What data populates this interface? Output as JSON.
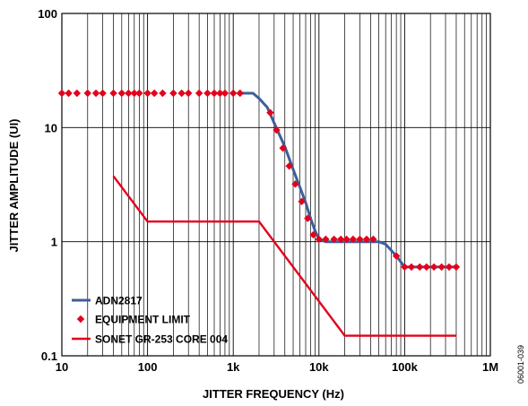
{
  "chart_data": {
    "type": "line",
    "xlabel": "JITTER FREQUENCY (Hz)",
    "ylabel": "JITTER AMPLITUDE (UI)",
    "xscale": "log",
    "yscale": "log",
    "xlim": [
      10,
      1000000
    ],
    "ylim": [
      0.1,
      100
    ],
    "grid": true,
    "legend_position": "bottom-left",
    "x_ticks": [
      {
        "value": 10,
        "label": "10"
      },
      {
        "value": 100,
        "label": "100"
      },
      {
        "value": 1000,
        "label": "1k"
      },
      {
        "value": 10000,
        "label": "10k"
      },
      {
        "value": 100000,
        "label": "100k"
      },
      {
        "value": 1000000,
        "label": "1M"
      }
    ],
    "y_ticks": [
      {
        "value": 0.1,
        "label": "0.1"
      },
      {
        "value": 1,
        "label": "1"
      },
      {
        "value": 10,
        "label": "10"
      },
      {
        "value": 100,
        "label": "100"
      }
    ],
    "figure_id": "06001-039",
    "series": [
      {
        "name": "ADN2817",
        "style": "line",
        "color": "#3d5f99",
        "x": [
          1200,
          1700,
          2000,
          2500,
          3000,
          4000,
          5000,
          6000,
          7000,
          8000,
          9000,
          10000,
          12000,
          20000,
          50000,
          60000,
          80000,
          100000,
          400000
        ],
        "y": [
          20,
          20,
          18,
          15,
          11,
          6.8,
          4.3,
          3.0,
          2.2,
          1.6,
          1.25,
          1.05,
          1.0,
          1.0,
          1.0,
          0.95,
          0.75,
          0.6,
          0.6
        ]
      },
      {
        "name": "EQUIPMENT LIMIT",
        "style": "markers",
        "marker": "diamond",
        "color": "#e3001b",
        "x": [
          10,
          12,
          15,
          20,
          25,
          30,
          40,
          50,
          60,
          70,
          80,
          100,
          120,
          150,
          200,
          250,
          300,
          400,
          500,
          600,
          700,
          800,
          1000,
          1200,
          2700,
          3200,
          3800,
          4500,
          5300,
          6300,
          7400,
          8600,
          10000,
          12000,
          15000,
          18000,
          21000,
          25000,
          30000,
          36000,
          43000,
          80000,
          100000,
          120000,
          150000,
          180000,
          220000,
          270000,
          330000,
          400000
        ],
        "y": [
          20,
          20,
          20,
          20,
          20,
          20,
          20,
          20,
          20,
          20,
          20,
          20,
          20,
          20,
          20,
          20,
          20,
          20,
          20,
          20,
          20,
          20,
          20,
          20,
          13.5,
          9.5,
          6.6,
          4.6,
          3.2,
          2.25,
          1.6,
          1.15,
          1.05,
          1.05,
          1.05,
          1.05,
          1.05,
          1.05,
          1.05,
          1.05,
          1.05,
          0.75,
          0.6,
          0.6,
          0.6,
          0.6,
          0.6,
          0.6,
          0.6,
          0.6
        ]
      },
      {
        "name": "SONET GR-253 CORE 004",
        "style": "line",
        "color": "#e3001b",
        "x": [
          40,
          100,
          2000,
          20000,
          400000
        ],
        "y": [
          3.75,
          1.5,
          1.5,
          0.15,
          0.15
        ]
      }
    ]
  }
}
